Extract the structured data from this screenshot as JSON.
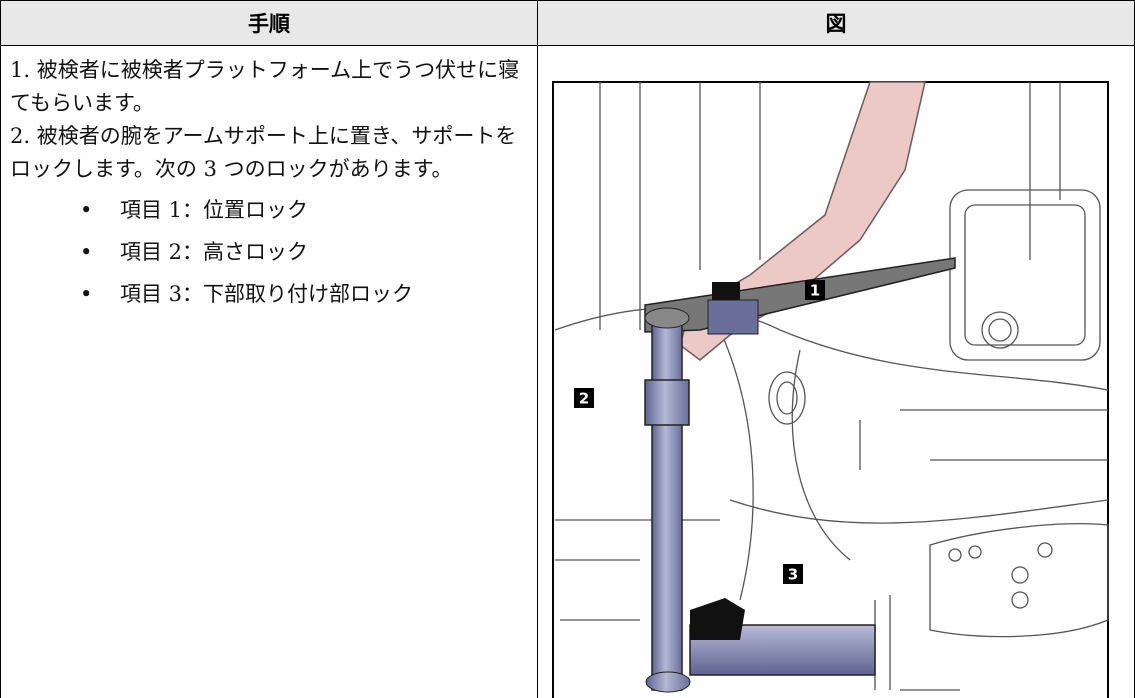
{
  "table": {
    "headers": [
      "手順",
      "図"
    ],
    "steps": [
      "1. 被検者に被検者プラットフォーム上でうつ伏せに寝てもらいます。",
      "2. 被検者の腕をアームサポート上に置き、サポートをロックします。次の 3 つのロックがあります。"
    ],
    "items": [
      "項目 1：位置ロック",
      "項目 2：高さロック",
      "項目 3：下部取り付け部ロック"
    ]
  },
  "figure": {
    "callouts": [
      "1",
      "2",
      "3"
    ]
  }
}
